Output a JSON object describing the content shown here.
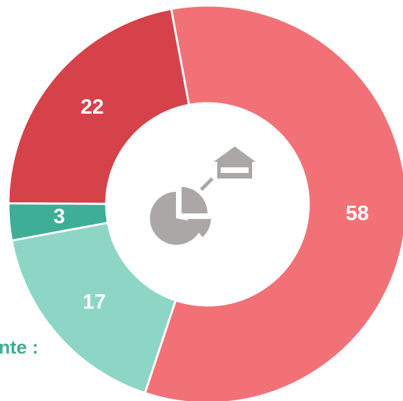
{
  "chart_data": {
    "type": "donut",
    "categories": [
      "58",
      "17",
      "3",
      "22"
    ],
    "values": [
      58,
      17,
      3,
      22
    ],
    "colors": [
      "#f27177",
      "#8dd6c5",
      "#3eae96",
      "#d6424a"
    ],
    "annotation": "nte :"
  }
}
